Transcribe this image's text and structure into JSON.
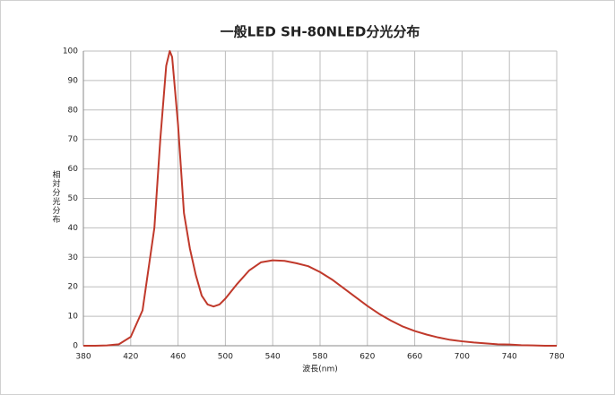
{
  "chart_data": {
    "type": "line",
    "title": "一般LED SH-80NLED分光分布",
    "x_label": "波長(nm)",
    "y_label": "相対分光分布",
    "x": [
      380,
      390,
      400,
      410,
      420,
      430,
      440,
      445,
      450,
      453,
      455,
      460,
      465,
      470,
      475,
      480,
      485,
      490,
      495,
      500,
      510,
      520,
      530,
      540,
      550,
      560,
      570,
      580,
      590,
      600,
      610,
      620,
      630,
      640,
      650,
      660,
      670,
      680,
      690,
      700,
      710,
      720,
      730,
      740,
      750,
      760,
      770,
      780
    ],
    "series": [
      {
        "name": "SH-80NLED",
        "color": "#c0392b",
        "values": [
          0,
          0,
          0.1,
          0.5,
          3,
          12,
          40,
          70,
          95,
          100,
          98,
          75,
          45,
          33,
          24,
          17,
          14,
          13.3,
          14,
          16,
          21,
          25.5,
          28.3,
          29,
          28.8,
          28,
          27,
          25,
          22.5,
          19.5,
          16.5,
          13.5,
          10.8,
          8.5,
          6.5,
          5,
          3.8,
          2.8,
          2,
          1.5,
          1.1,
          0.8,
          0.5,
          0.4,
          0.2,
          0.1,
          0,
          0
        ]
      }
    ],
    "xlim": [
      380,
      780
    ],
    "xticks": [
      380,
      420,
      460,
      500,
      540,
      580,
      620,
      660,
      700,
      740,
      780
    ],
    "ylim": [
      0,
      100
    ],
    "yticks": [
      0,
      10,
      20,
      30,
      40,
      50,
      60,
      70,
      80,
      90,
      100
    ],
    "grid": true
  }
}
